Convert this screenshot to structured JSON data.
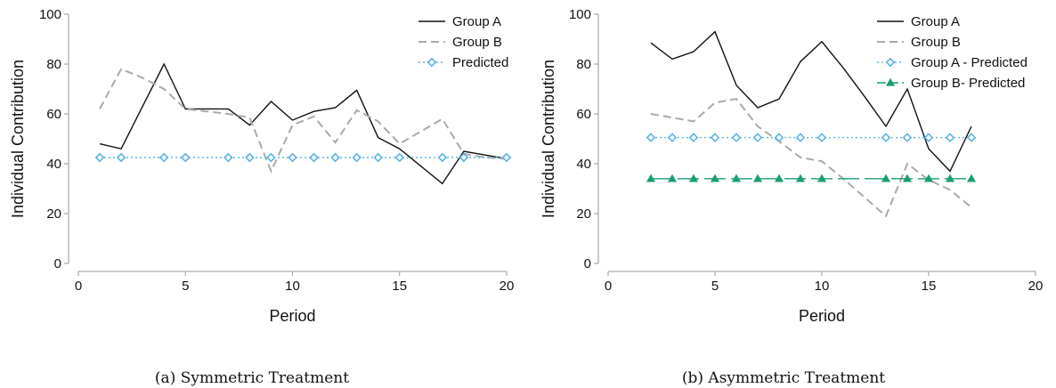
{
  "chart_data": [
    {
      "type": "line",
      "caption": "(a) Symmetric Treatment",
      "xlabel": "Period",
      "ylabel": "Individual Contribution",
      "xlim": [
        0,
        20
      ],
      "ylim": [
        0,
        100
      ],
      "xticks": [
        0,
        5,
        10,
        15,
        20
      ],
      "yticks": [
        0,
        20,
        40,
        60,
        80,
        100
      ],
      "legend_position": "top-right",
      "series": [
        {
          "name": "Group A",
          "style": "solid",
          "color": "#111111",
          "marker": "none",
          "x": [
            1,
            2,
            3,
            4,
            5,
            6,
            7,
            8,
            9,
            10,
            11,
            12,
            13,
            14,
            15,
            16,
            17,
            18,
            19,
            20
          ],
          "y": [
            48,
            46,
            63,
            80,
            62,
            62,
            62,
            55.5,
            65,
            57.5,
            61,
            62.5,
            69.5,
            50.5,
            46,
            39,
            32,
            45,
            43.5,
            42
          ]
        },
        {
          "name": "Group B",
          "style": "dashed",
          "color": "#aaaaaa",
          "marker": "none",
          "x": [
            1,
            2,
            3,
            4,
            5,
            6,
            7,
            8,
            9,
            10,
            11,
            12,
            13,
            14,
            15,
            16,
            17,
            18,
            19,
            20
          ],
          "y": [
            62,
            78,
            74.5,
            70,
            62,
            61,
            60,
            58.5,
            37,
            55.5,
            59,
            48.5,
            61.5,
            57,
            48,
            53,
            58,
            44,
            42.5,
            42
          ]
        },
        {
          "name": "Predicted",
          "style": "dotted",
          "color": "#5bb4e5",
          "marker": "diamond",
          "x": [
            1,
            2,
            4,
            5,
            7,
            8,
            9,
            10,
            11,
            12,
            13,
            14,
            15,
            17,
            18,
            20
          ],
          "y": [
            42.5,
            42.5,
            42.5,
            42.5,
            42.5,
            42.5,
            42.5,
            42.5,
            42.5,
            42.5,
            42.5,
            42.5,
            42.5,
            42.5,
            42.5,
            42.5
          ]
        }
      ]
    },
    {
      "type": "line",
      "caption": "(b) Asymmetric Treatment",
      "xlabel": "Period",
      "ylabel": "Individual Contribution",
      "xlim": [
        0,
        20
      ],
      "ylim": [
        0,
        100
      ],
      "xticks": [
        0,
        5,
        10,
        15,
        20
      ],
      "yticks": [
        0,
        20,
        40,
        60,
        80,
        100
      ],
      "legend_position": "top-right",
      "series": [
        {
          "name": "Group A",
          "style": "solid",
          "color": "#111111",
          "marker": "none",
          "x": [
            2,
            3,
            4,
            5,
            6,
            7,
            8,
            9,
            10,
            11,
            12,
            13,
            14,
            15,
            16,
            17
          ],
          "y": [
            88.5,
            82,
            85,
            93,
            71.5,
            62.5,
            66,
            81,
            89,
            78.5,
            67,
            55,
            70,
            46,
            37,
            55
          ]
        },
        {
          "name": "Group B",
          "style": "dashed",
          "color": "#aaaaaa",
          "marker": "none",
          "x": [
            2,
            3,
            4,
            5,
            6,
            7,
            8,
            9,
            10,
            11,
            12,
            13,
            14,
            15,
            16,
            17
          ],
          "y": [
            60,
            58.5,
            57,
            64.5,
            66,
            55,
            49,
            42.5,
            41,
            34,
            26.5,
            19,
            40,
            33.5,
            29.5,
            22.5
          ]
        },
        {
          "name": "Group A - Predicted",
          "style": "dotted",
          "color": "#5bb4e5",
          "marker": "diamond",
          "x": [
            2,
            3,
            4,
            5,
            6,
            7,
            8,
            9,
            10,
            13,
            14,
            15,
            16,
            17
          ],
          "y": [
            50.5,
            50.5,
            50.5,
            50.5,
            50.5,
            50.5,
            50.5,
            50.5,
            50.5,
            50.5,
            50.5,
            50.5,
            50.5,
            50.5
          ]
        },
        {
          "name": "Group B- Predicted",
          "style": "dashed-long",
          "color": "#1a9e76",
          "marker": "triangle",
          "x": [
            2,
            3,
            4,
            5,
            6,
            7,
            8,
            9,
            10,
            13,
            14,
            15,
            16,
            17
          ],
          "y": [
            34,
            34,
            34,
            34,
            34,
            34,
            34,
            34,
            34,
            34,
            34,
            34,
            34,
            34
          ]
        }
      ]
    }
  ]
}
